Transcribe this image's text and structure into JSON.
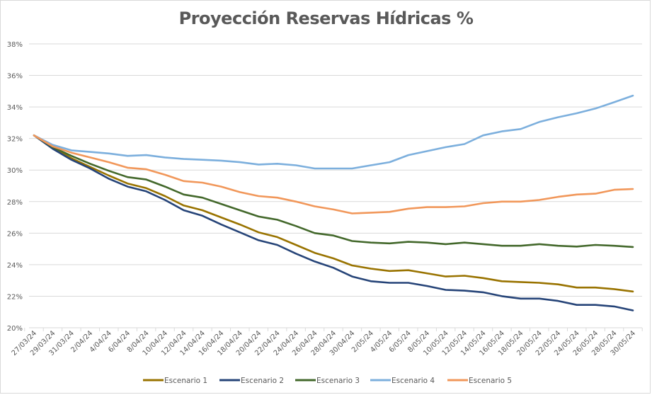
{
  "chart_data": {
    "type": "line",
    "title": "Proyección Reservas Hídricas %",
    "xlabel": "",
    "ylabel": "",
    "ylim": [
      20,
      38
    ],
    "yticks": [
      20,
      22,
      24,
      26,
      28,
      30,
      32,
      34,
      36,
      38
    ],
    "ytick_labels": [
      "20%",
      "22%",
      "24%",
      "26%",
      "28%",
      "30%",
      "32%",
      "34%",
      "36%",
      "38%"
    ],
    "grid": true,
    "legend_position": "bottom",
    "x": [
      "27/03/24",
      "29/03/24",
      "31/03/24",
      "2/04/24",
      "4/04/24",
      "6/04/24",
      "8/04/24",
      "10/04/24",
      "12/04/24",
      "14/04/24",
      "16/04/24",
      "18/04/24",
      "20/04/24",
      "22/04/24",
      "24/04/24",
      "26/04/24",
      "28/04/24",
      "30/04/24",
      "2/05/24",
      "4/05/24",
      "6/05/24",
      "8/05/24",
      "10/05/24",
      "12/05/24",
      "14/05/24",
      "16/05/24",
      "18/05/24",
      "20/05/24",
      "22/05/24",
      "24/05/24",
      "26/05/24",
      "28/05/24",
      "30/05/24"
    ],
    "series": [
      {
        "name": "Escenario 1",
        "color": "#997300",
        "values": [
          32.2,
          31.4,
          30.75,
          30.2,
          29.65,
          29.15,
          28.85,
          28.35,
          27.75,
          27.45,
          27.0,
          26.55,
          26.05,
          25.75,
          25.25,
          24.75,
          24.4,
          23.95,
          23.75,
          23.6,
          23.65,
          23.45,
          23.25,
          23.3,
          23.15,
          22.95,
          22.9,
          22.85,
          22.75,
          22.55,
          22.55,
          22.45,
          22.3
        ]
      },
      {
        "name": "Escenario 2",
        "color": "#264478",
        "values": [
          32.2,
          31.35,
          30.65,
          30.1,
          29.45,
          28.95,
          28.65,
          28.1,
          27.45,
          27.1,
          26.55,
          26.05,
          25.55,
          25.25,
          24.7,
          24.2,
          23.8,
          23.25,
          22.95,
          22.85,
          22.85,
          22.65,
          22.4,
          22.35,
          22.25,
          22.0,
          21.85,
          21.85,
          21.7,
          21.45,
          21.45,
          21.35,
          21.1
        ]
      },
      {
        "name": "Escenario 3",
        "color": "#43682B",
        "values": [
          32.2,
          31.45,
          30.9,
          30.4,
          29.95,
          29.55,
          29.4,
          28.95,
          28.45,
          28.25,
          27.85,
          27.45,
          27.05,
          26.85,
          26.45,
          26.0,
          25.85,
          25.5,
          25.4,
          25.35,
          25.45,
          25.4,
          25.3,
          25.4,
          25.3,
          25.2,
          25.2,
          25.3,
          25.2,
          25.15,
          25.25,
          25.2,
          25.12
        ]
      },
      {
        "name": "Escenario 4",
        "color": "#7CAFDD",
        "values": [
          32.2,
          31.6,
          31.25,
          31.15,
          31.05,
          30.9,
          30.95,
          30.8,
          30.7,
          30.65,
          30.6,
          30.5,
          30.35,
          30.4,
          30.3,
          30.1,
          30.1,
          30.1,
          30.3,
          30.5,
          30.95,
          31.2,
          31.45,
          31.65,
          32.2,
          32.45,
          32.6,
          33.05,
          33.35,
          33.6,
          33.9,
          34.3,
          34.72
        ]
      },
      {
        "name": "Escenario 5",
        "color": "#F1975A",
        "values": [
          32.2,
          31.5,
          31.1,
          30.8,
          30.5,
          30.15,
          30.05,
          29.7,
          29.3,
          29.2,
          28.95,
          28.6,
          28.35,
          28.25,
          28.0,
          27.7,
          27.5,
          27.25,
          27.3,
          27.35,
          27.55,
          27.65,
          27.65,
          27.7,
          27.9,
          28.0,
          28.0,
          28.1,
          28.3,
          28.45,
          28.5,
          28.75,
          28.8
        ]
      }
    ]
  }
}
